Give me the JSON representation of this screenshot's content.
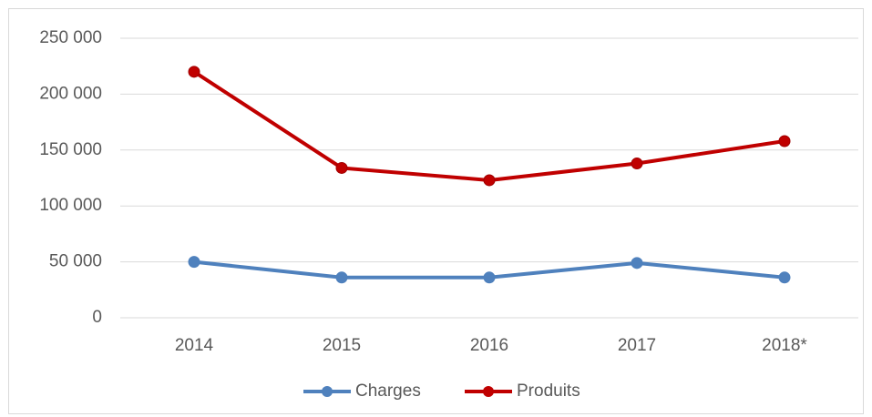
{
  "chart_data": {
    "type": "line",
    "categories": [
      "2014",
      "2015",
      "2016",
      "2017",
      "2018*"
    ],
    "series": [
      {
        "name": "Charges",
        "color": "#4f81bd",
        "values": [
          50000,
          36000,
          36000,
          49000,
          36000
        ]
      },
      {
        "name": "Produits",
        "color": "#c00000",
        "values": [
          220000,
          134000,
          123000,
          138000,
          158000
        ]
      }
    ],
    "ylim": [
      0,
      250000
    ],
    "yticks": [
      0,
      {
        "value": 50000,
        "label": "50 000"
      },
      {
        "value": 100000,
        "label": "100 000"
      },
      {
        "value": 150000,
        "label": "150 000"
      },
      {
        "value": 200000,
        "label": "200 000"
      },
      {
        "value": 250000,
        "label": "250 000"
      }
    ],
    "grid": true,
    "legend": "bottom"
  }
}
